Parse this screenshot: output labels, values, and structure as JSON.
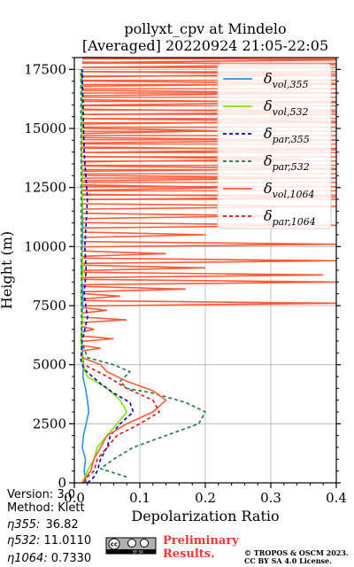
{
  "chart_data": {
    "type": "line",
    "title_lines": [
      "pollyxt_cpv at Mindelo",
      "[Averaged] 20220924 21:05-22:05"
    ],
    "xlabel": "Depolarization Ratio",
    "ylabel": "Height (m)",
    "xlim": [
      0,
      0.4
    ],
    "ylim": [
      0,
      18000
    ],
    "x_ticks": [
      0,
      0.1,
      0.2,
      0.3,
      0.4
    ],
    "x_tick_labels": [
      "0.0",
      "0.1",
      "0.2",
      "0.3",
      "0.4"
    ],
    "y_ticks": [
      0,
      2500,
      5000,
      7500,
      10000,
      12500,
      15000,
      17500
    ],
    "y_tick_labels": [
      "0",
      "2500",
      "5000",
      "7500",
      "10000",
      "12500",
      "15000",
      "17500"
    ],
    "grid": true,
    "legend_position": "top-right",
    "series": [
      {
        "name": "δ_vol,355",
        "color": "#2f8fe6",
        "dash": "solid",
        "x": [
          0.018,
          0.015,
          0.017,
          0.012,
          0.014,
          0.018,
          0.022,
          0.02,
          0.017,
          0.013,
          0.014,
          0.011,
          0.012,
          0.013,
          0.011,
          0.012,
          0.013,
          0.012,
          0.011,
          0.012
        ],
        "y": [
          0,
          500,
          1000,
          1500,
          2000,
          2500,
          3000,
          3500,
          4000,
          4500,
          5000,
          6000,
          7000,
          8000,
          9000,
          10000,
          11000,
          12000,
          14000,
          17500
        ]
      },
      {
        "name": "δ_vol,532",
        "color": "#7fe600",
        "dash": "solid",
        "x": [
          0.012,
          0.02,
          0.03,
          0.035,
          0.05,
          0.065,
          0.08,
          0.07,
          0.05,
          0.02,
          0.013,
          0.01,
          0.012,
          0.01,
          0.013,
          0.011,
          0.012,
          0.011,
          0.012,
          0.01
        ],
        "y": [
          0,
          500,
          1000,
          1500,
          2000,
          2500,
          3000,
          3500,
          4000,
          4500,
          5000,
          6000,
          7000,
          8000,
          9000,
          10000,
          12000,
          14000,
          16000,
          17500
        ]
      },
      {
        "name": "δ_par,355",
        "color": "#0000cc",
        "dash": "4,3",
        "x": [
          0.02,
          0.03,
          0.035,
          0.04,
          0.05,
          0.055,
          0.07,
          0.09,
          0.085,
          0.06,
          0.04,
          0.015,
          0.01,
          0.012,
          0.02,
          0.015,
          0.018,
          0.016,
          0.02,
          0.015,
          0.012
        ],
        "y": [
          0,
          250,
          500,
          1000,
          1500,
          2000,
          2500,
          3000,
          3400,
          3800,
          4200,
          4800,
          5200,
          6000,
          7000,
          8000,
          9000,
          10000,
          12000,
          14000,
          17500
        ]
      },
      {
        "name": "δ_par,532",
        "color": "#1f7a3a",
        "dash": "4,3",
        "x": [
          0.08,
          0.04,
          0.06,
          0.09,
          0.14,
          0.19,
          0.2,
          0.17,
          0.12,
          0.08,
          0.07,
          0.085,
          0.06,
          0.02,
          0.011,
          0.01
        ],
        "y": [
          250,
          600,
          1000,
          1500,
          2000,
          2500,
          3000,
          3400,
          3800,
          4000,
          4300,
          4700,
          5000,
          5300,
          6000,
          17500
        ]
      },
      {
        "name": "δ_vol,1064",
        "color": "#ff5a36",
        "dash": "solid",
        "x": [
          0.012,
          0.018,
          0.025,
          0.03,
          0.04,
          0.05,
          0.08,
          0.12,
          0.14,
          0.12,
          0.08,
          0.05,
          0.04,
          0.012
        ],
        "y": [
          0,
          250,
          500,
          1000,
          1500,
          2000,
          2500,
          3000,
          3500,
          3900,
          4300,
          4700,
          5000,
          5300
        ]
      },
      {
        "name": "δ_par,1064",
        "color": "#cc1a1a",
        "dash": "4,3",
        "x": [
          0.015,
          0.02,
          0.03,
          0.035,
          0.05,
          0.065,
          0.1,
          0.13,
          0.12,
          0.08,
          0.05,
          0.015
        ],
        "y": [
          0,
          250,
          500,
          1000,
          1500,
          2000,
          2500,
          3000,
          3500,
          4000,
          4500,
          5000
        ]
      }
    ],
    "noisy_1064_region": {
      "color": "#ff5a36",
      "y_range": [
        5300,
        18000
      ],
      "spikes": [
        {
          "y": 5700,
          "x": 0.04
        },
        {
          "y": 6100,
          "x": 0.06
        },
        {
          "y": 6500,
          "x": 0.03
        },
        {
          "y": 6900,
          "x": 0.08
        },
        {
          "y": 7300,
          "x": 0.05
        },
        {
          "y": 7600,
          "x": 0.4
        },
        {
          "y": 7900,
          "x": 0.07
        },
        {
          "y": 8200,
          "x": 0.17
        },
        {
          "y": 8500,
          "x": 0.4
        },
        {
          "y": 8800,
          "x": 0.38
        },
        {
          "y": 9100,
          "x": 0.2
        },
        {
          "y": 9400,
          "x": 0.4
        },
        {
          "y": 9700,
          "x": 0.14
        },
        {
          "y": 10100,
          "x": 0.4
        },
        {
          "y": 10500,
          "x": 0.2
        },
        {
          "y": 10900,
          "x": 0.4
        },
        {
          "y": 11300,
          "x": 0.3
        },
        {
          "y": 11700,
          "x": 0.4
        },
        {
          "y": 12100,
          "x": 0.4
        },
        {
          "y": 12500,
          "x": 0.25
        },
        {
          "y": 12900,
          "x": 0.4
        },
        {
          "y": 13300,
          "x": 0.4
        },
        {
          "y": 13700,
          "x": 0.35
        },
        {
          "y": 14100,
          "x": 0.4
        },
        {
          "y": 14500,
          "x": 0.4
        },
        {
          "y": 14900,
          "x": 0.22
        },
        {
          "y": 15300,
          "x": 0.4
        },
        {
          "y": 15700,
          "x": 0.4
        },
        {
          "y": 16100,
          "x": 0.4
        },
        {
          "y": 16500,
          "x": 0.4
        },
        {
          "y": 16900,
          "x": 0.4
        },
        {
          "y": 17300,
          "x": 0.4
        },
        {
          "y": 17700,
          "x": 0.4
        },
        {
          "y": 17900,
          "x": 0.4
        }
      ]
    }
  },
  "legend": {
    "entries": [
      {
        "base": "δ",
        "sub": "vol,355",
        "color": "#2f8fe6",
        "dash": "solid"
      },
      {
        "base": "δ",
        "sub": "vol,532",
        "color": "#7fe600",
        "dash": "solid"
      },
      {
        "base": "δ",
        "sub": "par,355",
        "color": "#0000cc",
        "dash": "dashed"
      },
      {
        "base": "δ",
        "sub": "par,532",
        "color": "#1f7a3a",
        "dash": "dashed"
      },
      {
        "base": "δ",
        "sub": "vol,1064",
        "color": "#ff5a36",
        "dash": "solid"
      },
      {
        "base": "δ",
        "sub": "par,1064",
        "color": "#cc1a1a",
        "dash": "dashed"
      }
    ]
  },
  "info": {
    "version": "Version: 3.0",
    "method": "Method: Klett",
    "eta355_label": "η355:",
    "eta355_value": "36.82",
    "eta532_label": "η532:",
    "eta532_value": "11.0110",
    "eta1064_label": "η1064:",
    "eta1064_value": "0.7330"
  },
  "footer": {
    "license_badge": "BY SA",
    "cc_text": "cc",
    "preliminary_line1": "Preliminary",
    "preliminary_line2": "Results.",
    "copyright_line1": "© TROPOS & OSCM 2023.",
    "copyright_line2": "CC BY SA 4.0 License."
  }
}
